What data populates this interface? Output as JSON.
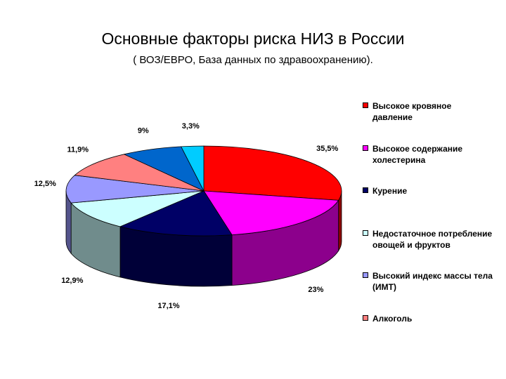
{
  "chart_data": {
    "type": "pie3d",
    "title": "Основные факторы риска НИЗ в России",
    "subtitle": "( ВОЗ/ЕВРО, База данных по здравоохранению).",
    "categories": [
      "Высокое кровяное давление",
      "Высокое содержание холестерина",
      "Курение",
      "Недостаточное потребление овощей и фруктов",
      "Высокий индекс массы тела (ИМТ)",
      "Алкоголь",
      null,
      null
    ],
    "values": [
      35.5,
      23,
      17.1,
      12.9,
      12.5,
      11.9,
      9,
      3.3
    ],
    "value_labels": [
      "35,5%",
      "23%",
      "17,1%",
      "12,9%",
      "12,5%",
      "11,9%",
      "9%",
      "3,3%"
    ],
    "colors": [
      "#ff0000",
      "#ff00ff",
      "#000066",
      "#ccffff",
      "#9999ff",
      "#ff8080",
      "#0066cc",
      "#00ccff"
    ],
    "legend": "right"
  }
}
